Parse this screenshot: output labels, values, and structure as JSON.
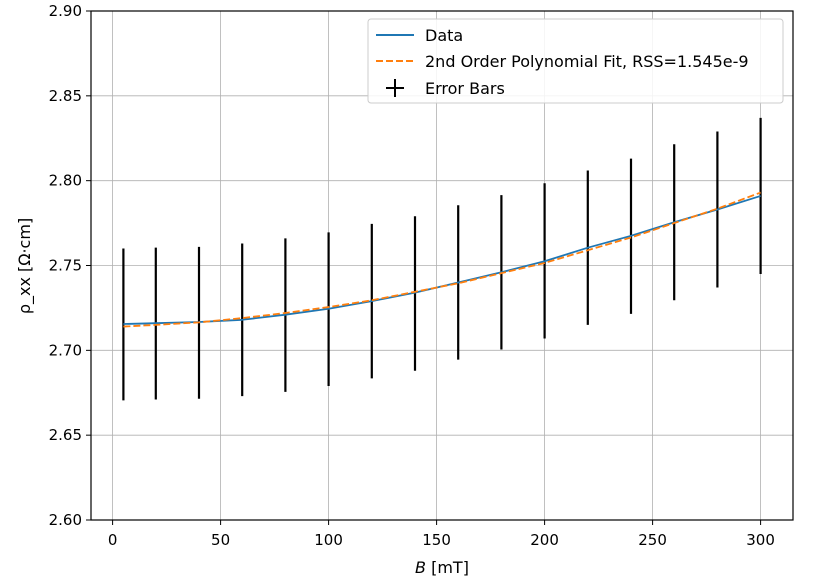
{
  "chart_data": {
    "type": "line",
    "xlabel_symbol": "B",
    "xlabel_unit": " [mT]",
    "ylabel": "ρ_xx [Ω·cm]",
    "xlim": [
      -10,
      315
    ],
    "ylim": [
      2.6,
      2.9
    ],
    "x_ticks": [
      0,
      50,
      100,
      150,
      200,
      250,
      300
    ],
    "y_ticks": [
      2.6,
      2.65,
      2.7,
      2.75,
      2.8,
      2.85,
      2.9
    ],
    "x_tick_labels": [
      "0",
      "50",
      "100",
      "150",
      "200",
      "250",
      "300"
    ],
    "y_tick_labels": [
      "2.60",
      "2.65",
      "2.70",
      "2.75",
      "2.80",
      "2.85",
      "2.90"
    ],
    "grid": true,
    "legend_position": "top-right",
    "x": [
      5,
      20,
      40,
      60,
      80,
      100,
      120,
      140,
      160,
      180,
      200,
      220,
      240,
      260,
      280,
      300
    ],
    "series": [
      {
        "name": "Data",
        "style": "solid",
        "color": "#1f77b4",
        "values": [
          2.7155,
          2.716,
          2.7167,
          2.718,
          2.721,
          2.7245,
          2.729,
          2.734,
          2.74,
          2.746,
          2.7525,
          2.7605,
          2.7675,
          2.7755,
          2.783,
          2.791
        ]
      },
      {
        "name": "2nd Order Polynomial Fit, RSS=1.545e-9",
        "style": "dashed",
        "color": "#ff7f0e",
        "values": [
          2.714,
          2.715,
          2.7165,
          2.719,
          2.722,
          2.7255,
          2.7295,
          2.7345,
          2.7395,
          2.7455,
          2.7515,
          2.759,
          2.7665,
          2.775,
          2.7835,
          2.793
        ]
      }
    ],
    "error_bars": {
      "name": "Error Bars",
      "color": "#000000",
      "lower": [
        2.6705,
        2.671,
        2.6715,
        2.673,
        2.6755,
        2.679,
        2.6835,
        2.688,
        2.6945,
        2.7005,
        2.707,
        2.715,
        2.7215,
        2.7295,
        2.737,
        2.745
      ],
      "upper": [
        2.76,
        2.7605,
        2.761,
        2.763,
        2.766,
        2.7695,
        2.7745,
        2.779,
        2.7855,
        2.7915,
        2.7985,
        2.806,
        2.813,
        2.8215,
        2.829,
        2.837
      ]
    }
  }
}
